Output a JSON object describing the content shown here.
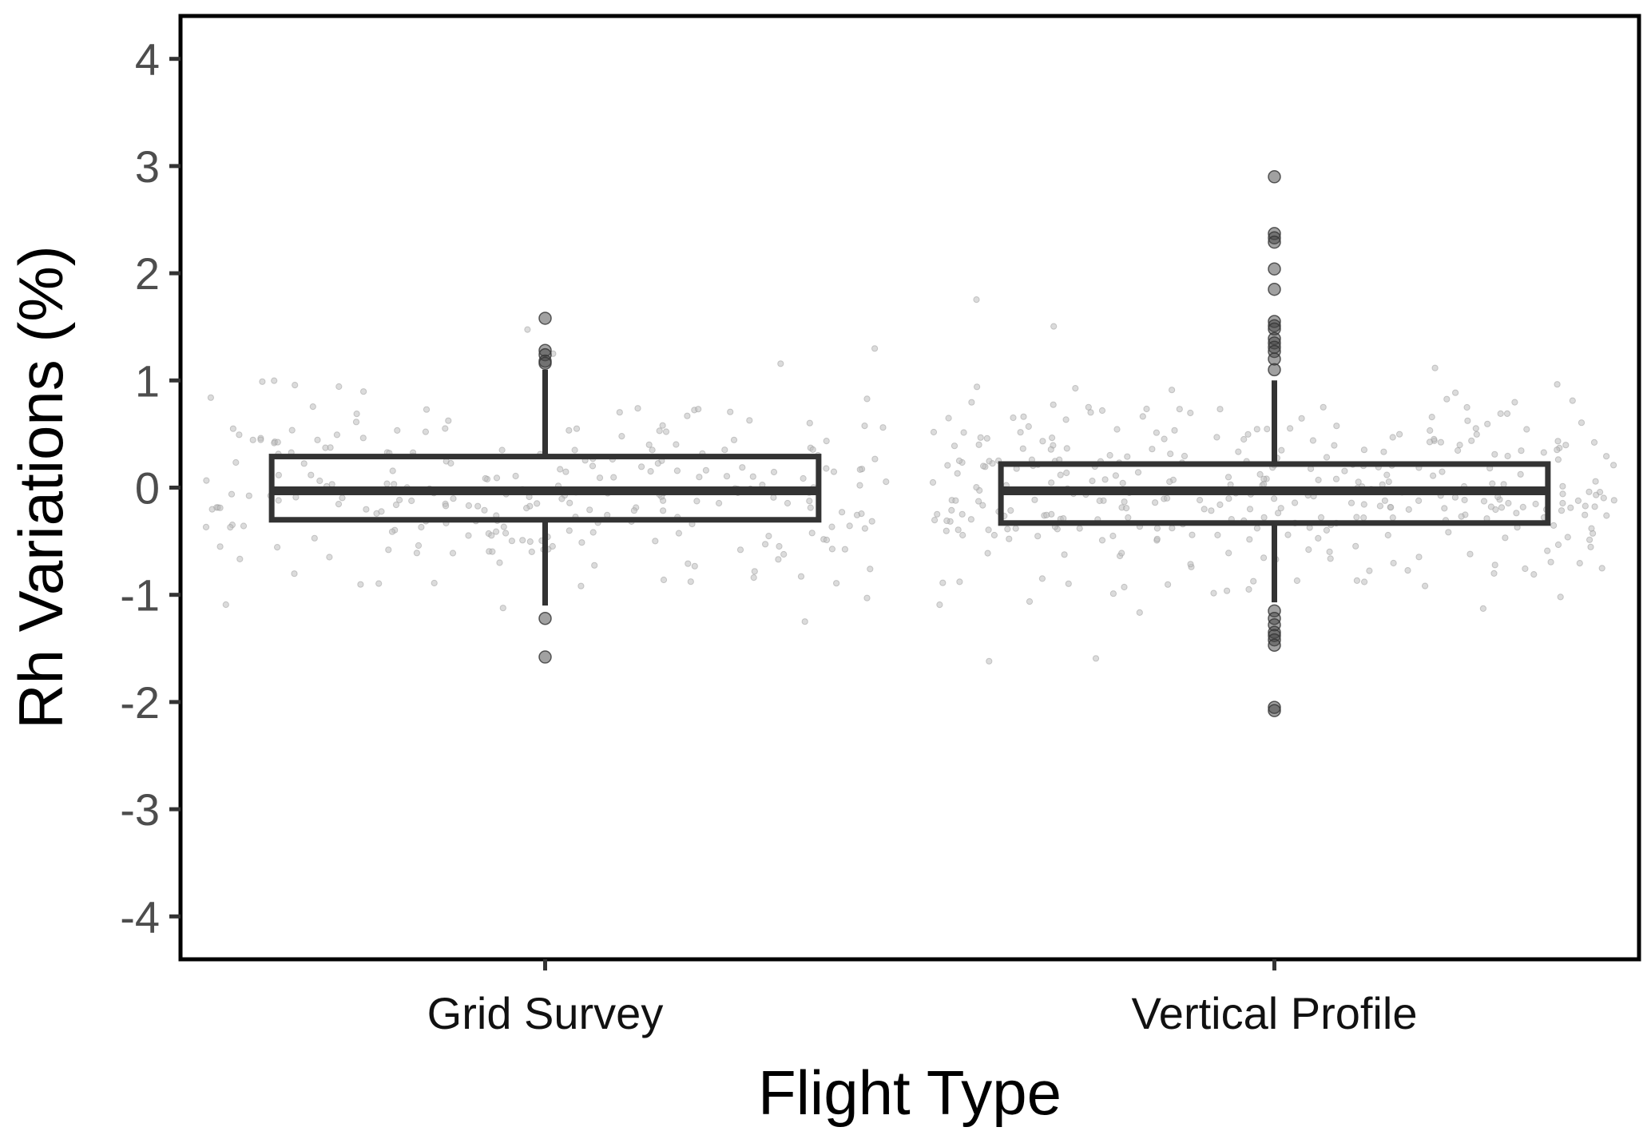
{
  "chart_data": {
    "type": "box",
    "xlabel": "Flight Type",
    "ylabel": "Rh Variations (%)",
    "ylim": [
      -4.4,
      4.4
    ],
    "yticks": [
      4,
      3,
      2,
      1,
      0,
      -1,
      -2,
      -3,
      -4
    ],
    "ytick_labels": [
      "4",
      "3",
      "2",
      "1",
      "0",
      "-1",
      "-2",
      "-3",
      "-4"
    ],
    "categories": [
      "Grid Survey",
      "Vertical Profile"
    ],
    "grid": false,
    "legend": "none",
    "colors": {
      "box": "#333333",
      "jitter": "#bdbdbd",
      "outlier": "#444444"
    },
    "boxes": [
      {
        "category": "Grid Survey",
        "whisker_low": -1.1,
        "q1": -0.3,
        "median": -0.03,
        "q3": 0.29,
        "whisker_high": 1.1,
        "outliers": [
          1.58,
          1.28,
          1.24,
          1.18,
          1.16,
          -1.22,
          -1.58
        ],
        "jitter_n": 260,
        "jitter_halfwidth": 0.47
      },
      {
        "category": "Vertical Profile",
        "whisker_low": -1.07,
        "q1": -0.33,
        "median": -0.03,
        "q3": 0.22,
        "whisker_high": 1.0,
        "outliers": [
          2.9,
          2.37,
          2.33,
          2.29,
          2.04,
          1.85,
          1.55,
          1.51,
          1.48,
          1.39,
          1.35,
          1.31,
          1.27,
          1.2,
          1.1,
          -1.15,
          -1.22,
          -1.28,
          -1.35,
          -1.38,
          -1.42,
          -1.47,
          -2.05,
          -2.08
        ],
        "jitter_n": 360,
        "jitter_halfwidth": 0.47
      }
    ]
  }
}
